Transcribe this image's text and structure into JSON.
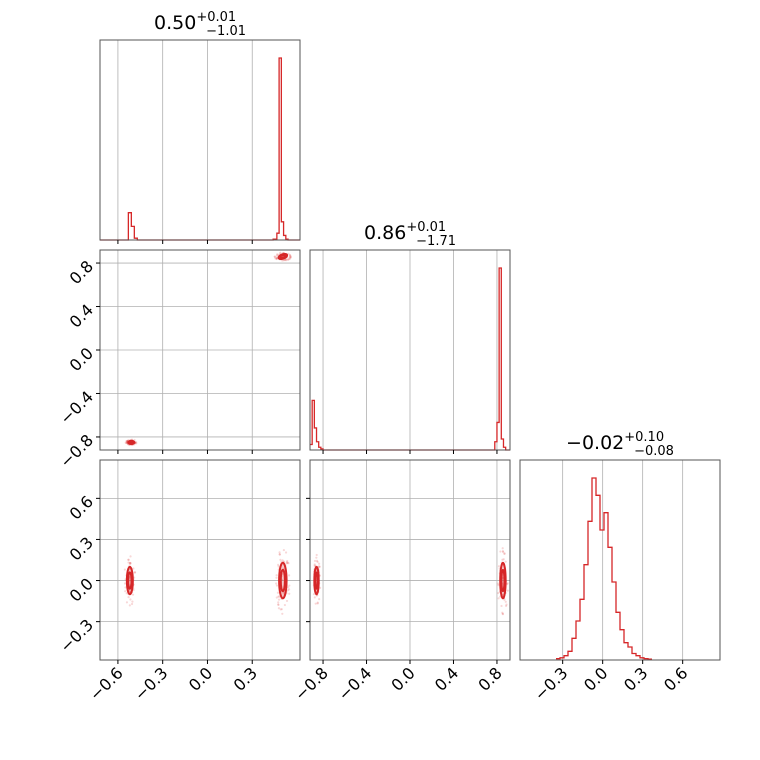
{
  "chart_data": {
    "type": "corner",
    "color": "#d62728",
    "titles": [
      {
        "param": 0,
        "value": "0.50",
        "plus": "+0.01",
        "minus": "−1.01"
      },
      {
        "param": 1,
        "value": "0.86",
        "plus": "+0.01",
        "minus": "−1.71"
      },
      {
        "param": 2,
        "value": "−0.02",
        "plus": "+0.10",
        "minus": "−0.08"
      }
    ],
    "params": [
      {
        "range": [
          -0.72,
          0.62
        ],
        "ticks": [
          -0.6,
          -0.3,
          0.0,
          0.3
        ],
        "tick_labels": [
          "−0.6",
          "−0.3",
          "0.0",
          "0.3"
        ]
      },
      {
        "range": [
          -0.92,
          0.92
        ],
        "ticks": [
          -0.8,
          -0.4,
          0.0,
          0.4,
          0.8
        ],
        "tick_labels": [
          "−0.8",
          "−0.4",
          "0.0",
          "0.4",
          "0.8"
        ]
      },
      {
        "range": [
          -0.62,
          0.88
        ],
        "ticks": [
          -0.3,
          0.0,
          0.3,
          0.6
        ],
        "tick_labels": [
          "−0.3",
          "0.0",
          "0.3",
          "0.6"
        ]
      }
    ],
    "lower_y_ticks": {
      "p1": {
        "ticks": [
          -0.8,
          -0.4,
          0.0,
          0.4,
          0.8
        ],
        "tick_labels": [
          "−0.8",
          "−0.4",
          "0.0",
          "0.4",
          "0.8"
        ],
        "range": [
          -0.92,
          0.92
        ]
      },
      "p2": {
        "ticks": [
          -0.3,
          0.0,
          0.3,
          0.6
        ],
        "tick_labels": [
          "−0.3",
          "0.0",
          "0.3",
          "0.6"
        ],
        "range": [
          -0.58,
          0.88
        ]
      }
    },
    "histograms": [
      {
        "param": 0,
        "edges": [
          -0.72,
          -0.68,
          -0.64,
          -0.6,
          -0.56,
          -0.53,
          -0.51,
          -0.49,
          -0.47,
          -0.44,
          -0.4,
          0.4,
          0.44,
          0.465,
          0.48,
          0.495,
          0.51,
          0.525,
          0.54,
          0.56,
          0.62
        ],
        "counts": [
          0,
          0,
          0,
          0,
          0,
          6,
          3,
          0.4,
          0,
          0,
          0,
          0,
          0.2,
          1.5,
          40,
          4,
          1,
          0.2,
          0,
          0
        ]
      },
      {
        "param": 1,
        "edges": [
          -0.92,
          -0.9,
          -0.88,
          -0.86,
          -0.84,
          -0.82,
          -0.8,
          -0.78,
          0.78,
          0.8,
          0.82,
          0.84,
          0.86,
          0.88,
          0.9,
          0.92
        ],
        "counts": [
          1,
          9,
          4,
          1.5,
          0.5,
          0.2,
          0,
          0,
          1.5,
          5,
          33,
          2,
          0.5,
          0,
          0
        ]
      },
      {
        "param": 2,
        "edges": [
          -0.35,
          -0.32,
          -0.29,
          -0.26,
          -0.23,
          -0.2,
          -0.17,
          -0.14,
          -0.11,
          -0.08,
          -0.05,
          -0.02,
          0.01,
          0.04,
          0.07,
          0.1,
          0.13,
          0.16,
          0.19,
          0.22,
          0.25,
          0.28,
          0.31,
          0.34,
          0.37
        ],
        "counts": [
          0.3,
          0.5,
          1,
          2,
          5,
          9,
          14,
          22,
          32,
          42,
          38,
          30,
          34,
          26,
          18,
          11,
          7,
          4,
          3,
          1.5,
          1,
          0.5,
          0.3,
          0.2
        ]
      }
    ],
    "pairs": [
      {
        "x": 0,
        "y": 1,
        "blobs": [
          {
            "cx": 0.505,
            "cy": 0.86,
            "rx": 0.03,
            "ry": 0.02,
            "rot": -20
          },
          {
            "cx": -0.51,
            "cy": -0.85,
            "rx": 0.02,
            "ry": 0.015,
            "rot": 0
          }
        ]
      },
      {
        "x": 0,
        "y": 2,
        "blobs": [
          {
            "cx": -0.52,
            "cy": 0.0,
            "rx": 0.02,
            "ry": 0.1,
            "rot": 0
          },
          {
            "cx": 0.505,
            "cy": 0.0,
            "rx": 0.025,
            "ry": 0.13,
            "rot": 0
          }
        ]
      },
      {
        "x": 1,
        "y": 2,
        "blobs": [
          {
            "cx": -0.86,
            "cy": 0.0,
            "rx": 0.02,
            "ry": 0.1,
            "rot": 0
          },
          {
            "cx": 0.855,
            "cy": 0.0,
            "rx": 0.025,
            "ry": 0.13,
            "rot": 0
          }
        ]
      }
    ]
  }
}
